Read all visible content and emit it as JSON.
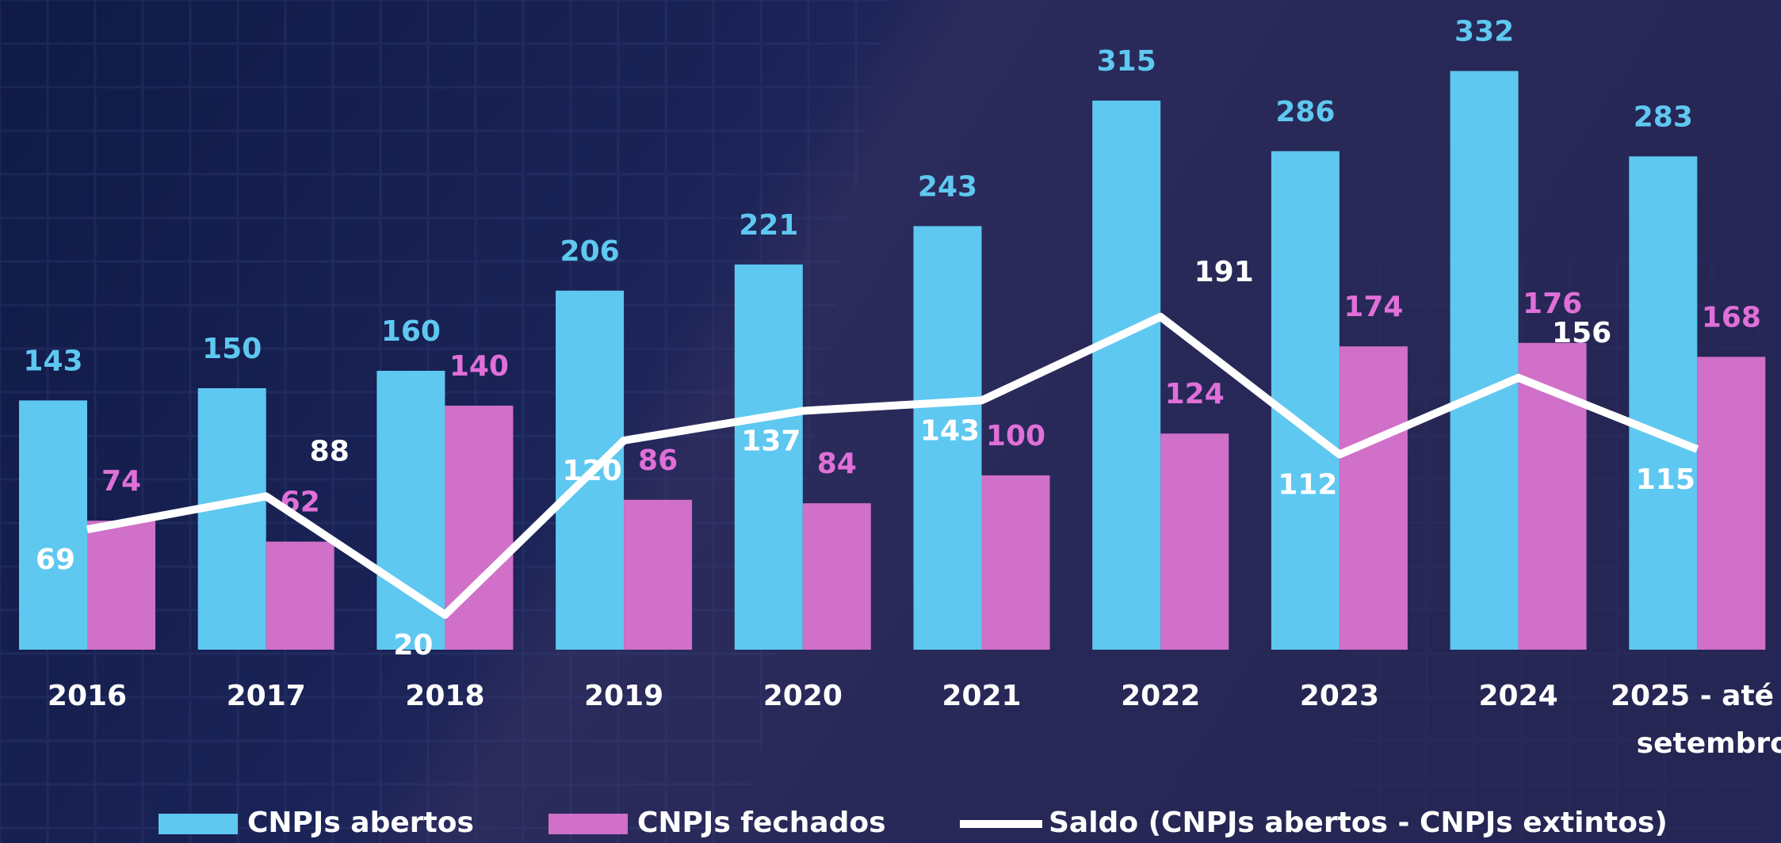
{
  "chart_data": {
    "type": "bar",
    "categories": [
      "2016",
      "2017",
      "2018",
      "2019",
      "2020",
      "2021",
      "2022",
      "2023",
      "2024",
      "2025 - até setembro"
    ],
    "series": [
      {
        "name": "CNPJs abertos",
        "type": "bar",
        "color": "#5ec8f0",
        "values": [
          143,
          150,
          160,
          206,
          221,
          243,
          315,
          286,
          332,
          283
        ]
      },
      {
        "name": "CNPJs fechados",
        "type": "bar",
        "color": "#d070c8",
        "values": [
          74,
          62,
          140,
          86,
          84,
          100,
          124,
          174,
          176,
          168
        ]
      },
      {
        "name": "Saldo (CNPJs abertos - CNPJs extintos)",
        "type": "line",
        "color": "#ffffff",
        "values": [
          69,
          88,
          20,
          120,
          137,
          143,
          191,
          112,
          156,
          115
        ]
      }
    ],
    "legend": "bottom"
  }
}
